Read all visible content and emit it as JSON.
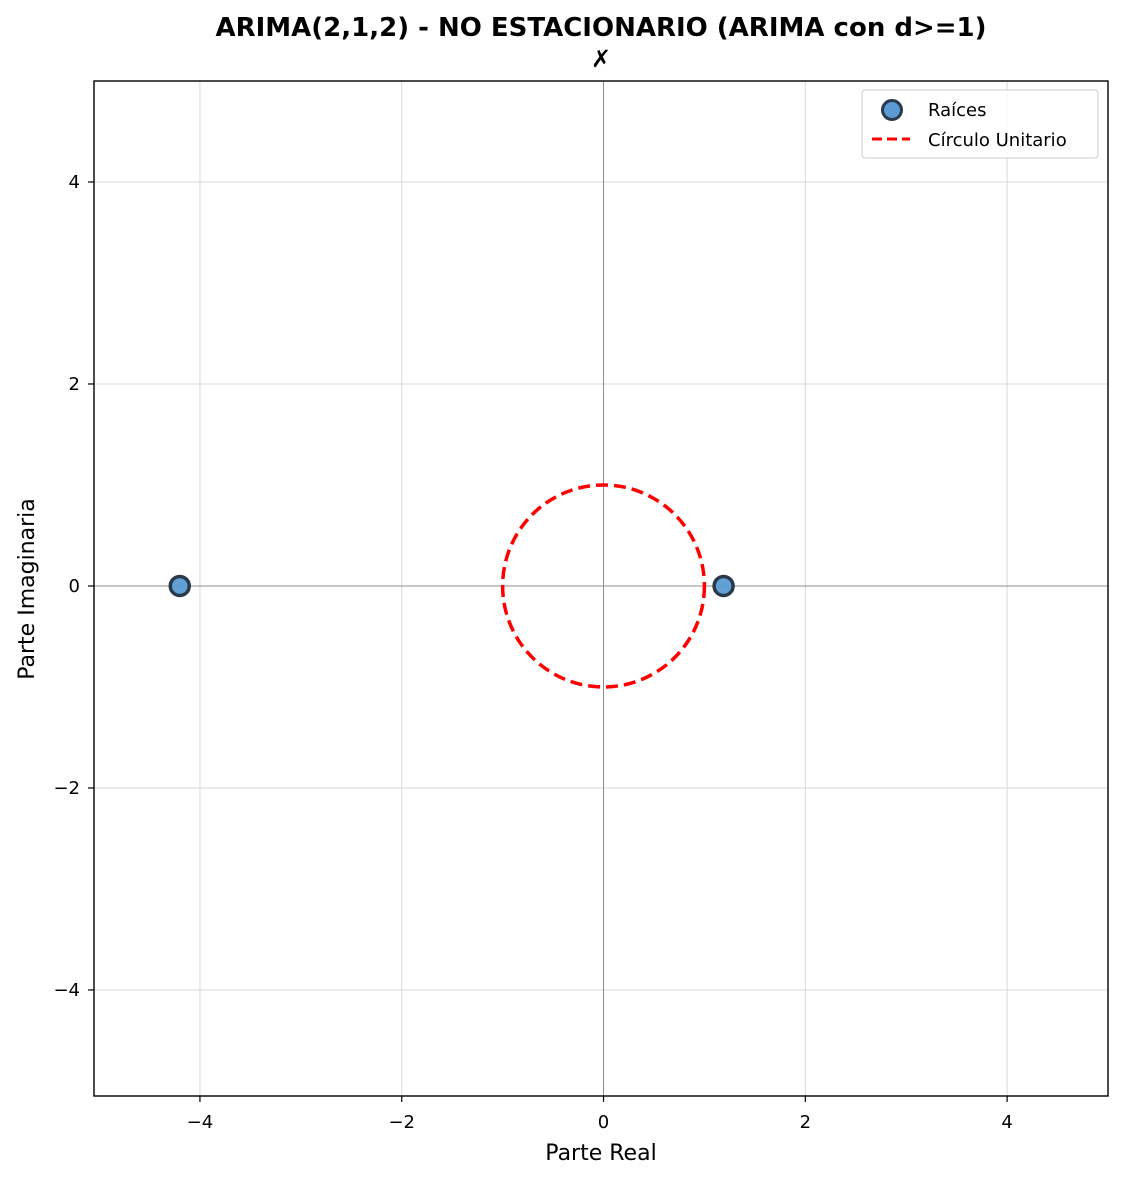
{
  "chart_data": {
    "type": "scatter",
    "title": "ARIMA(2,1,2) - NO ESTACIONARIO (ARIMA con d>=1)",
    "subtitle": "✗",
    "xlabel": "Parte Real",
    "ylabel": "Parte Imaginaria",
    "xlim": [
      -5.05,
      5.0
    ],
    "ylim": [
      -5.05,
      5.0
    ],
    "x_ticks": [
      -4,
      -2,
      0,
      2,
      4
    ],
    "y_ticks": [
      -4,
      -2,
      0,
      2,
      4
    ],
    "x_tick_labels": [
      "−4",
      "−2",
      "0",
      "2",
      "4"
    ],
    "y_tick_labels": [
      "−4",
      "−2",
      "0",
      "2",
      "4"
    ],
    "grid": true,
    "legend_position": "top-right",
    "series": [
      {
        "name": "Raíces",
        "kind": "points",
        "color": "#5b9bd5",
        "edge_color": "#2b3a4a",
        "points": [
          {
            "x": -4.2,
            "y": 0.0
          },
          {
            "x": 1.19,
            "y": 0.0
          }
        ]
      },
      {
        "name": "Círculo Unitario",
        "kind": "circle",
        "color": "#ff0000",
        "center": [
          0,
          0
        ],
        "radius": 1,
        "line_style": "dashed"
      }
    ]
  }
}
